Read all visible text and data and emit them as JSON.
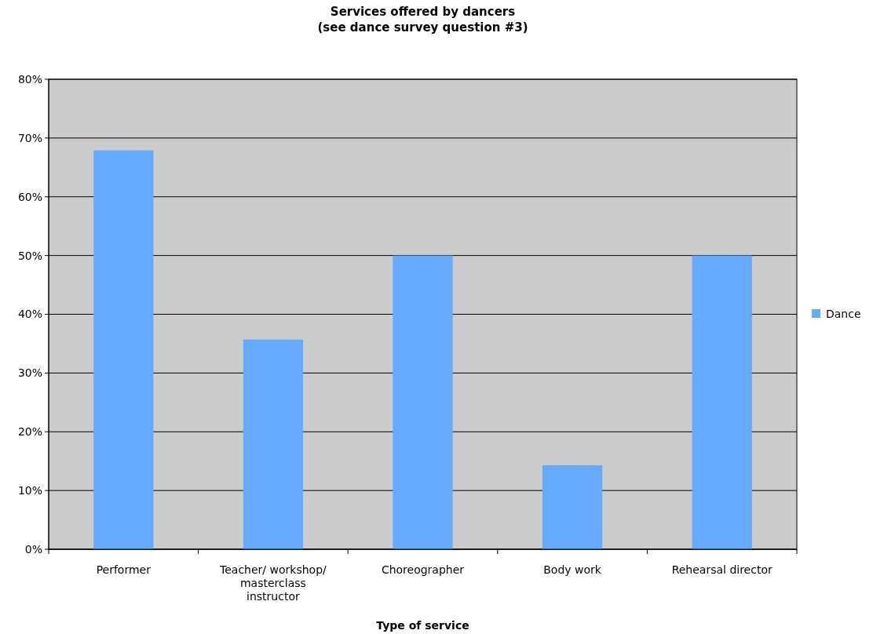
{
  "chart_data": {
    "type": "bar",
    "title": "Services offered by dancers\n(see dance survey question #3)",
    "xlabel": "Type of service",
    "categories": [
      "Performer",
      "Teacher/ workshop/ masterclass instructor",
      "Choreographer",
      "Body work",
      "Rehearsal director"
    ],
    "series": [
      {
        "name": "Dance",
        "color": "#66aaff",
        "values": [
          67.9,
          35.7,
          50,
          14.3,
          50
        ]
      }
    ],
    "ylim": [
      0,
      80
    ],
    "yticks": [
      {
        "value": 0,
        "label": "0%"
      },
      {
        "value": 10,
        "label": "10%"
      },
      {
        "value": 20,
        "label": "20%"
      },
      {
        "value": 30,
        "label": "30%"
      },
      {
        "value": 40,
        "label": "40%"
      },
      {
        "value": 50,
        "label": "50%"
      },
      {
        "value": 60,
        "label": "60%"
      },
      {
        "value": 70,
        "label": "70%"
      },
      {
        "value": 80,
        "label": "80%"
      }
    ],
    "grid": "y",
    "legend": "right"
  }
}
